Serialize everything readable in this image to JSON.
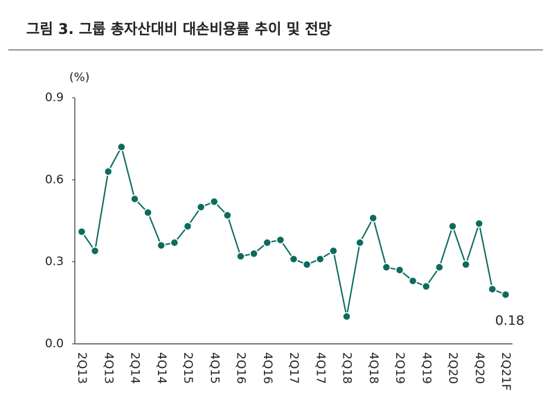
{
  "chart_data": {
    "type": "line",
    "title": "그림 3. 그룹 총자산대비 대손비용률 추이 및 전망",
    "y_label": "(%)",
    "categories": [
      "2Q13",
      null,
      "4Q13",
      null,
      "2Q14",
      null,
      "4Q14",
      null,
      "2Q15",
      null,
      "4Q15",
      null,
      "2Q16",
      null,
      "4Q16",
      null,
      "2Q17",
      null,
      "4Q17",
      null,
      "2Q18",
      null,
      "4Q18",
      null,
      "2Q19",
      null,
      "4Q19",
      null,
      "2Q20",
      null,
      "4Q20",
      null,
      "2Q21F"
    ],
    "values": [
      0.41,
      0.34,
      0.63,
      0.72,
      0.53,
      0.48,
      0.36,
      0.37,
      0.43,
      0.5,
      0.52,
      0.47,
      0.32,
      0.33,
      0.37,
      0.38,
      0.31,
      0.29,
      0.31,
      0.34,
      0.1,
      0.37,
      0.46,
      0.28,
      0.27,
      0.23,
      0.21,
      0.28,
      0.43,
      0.29,
      0.44,
      0.2,
      0.18
    ],
    "color": "#0d6b5e",
    "ylim": [
      0,
      0.9
    ],
    "yticks": [
      {
        "value": 0,
        "label": "0.0"
      },
      0.3,
      0.6,
      0.9
    ],
    "grid": false
  }
}
